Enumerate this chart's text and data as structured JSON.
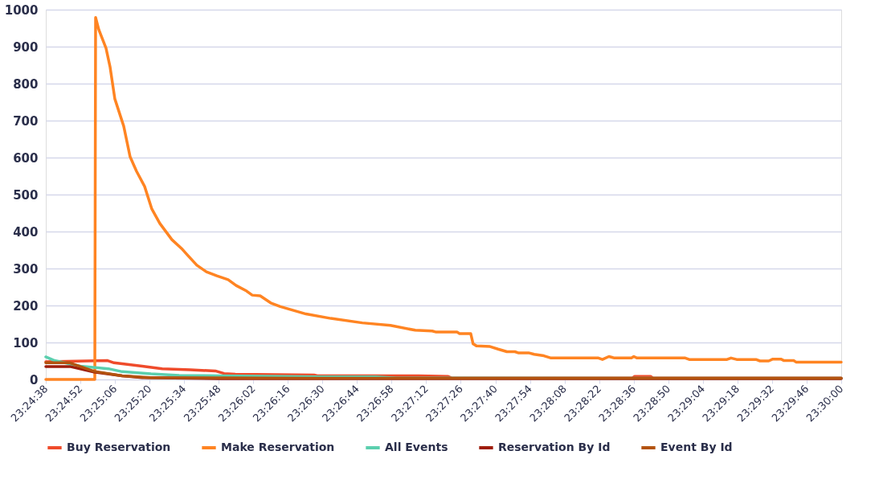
{
  "chart_data": {
    "type": "line",
    "xlim": [
      23.41056,
      23.5
    ],
    "ylim": [
      0,
      1000
    ],
    "yticks": [
      0,
      100,
      200,
      300,
      400,
      500,
      600,
      700,
      800,
      900,
      1000
    ],
    "xticks": [
      {
        "value": 23.41056,
        "label": "23:24:38"
      },
      {
        "value": 23.41444,
        "label": "23:24:52"
      },
      {
        "value": 23.41833,
        "label": "23:25:06"
      },
      {
        "value": 23.42222,
        "label": "23:25:20"
      },
      {
        "value": 23.42611,
        "label": "23:25:34"
      },
      {
        "value": 23.43,
        "label": "23:25:48"
      },
      {
        "value": 23.43389,
        "label": "23:26:02"
      },
      {
        "value": 23.43778,
        "label": "23:26:16"
      },
      {
        "value": 23.44167,
        "label": "23:26:30"
      },
      {
        "value": 23.44556,
        "label": "23:26:44"
      },
      {
        "value": 23.44944,
        "label": "23:26:58"
      },
      {
        "value": 23.45333,
        "label": "23:27:12"
      },
      {
        "value": 23.45722,
        "label": "23:27:26"
      },
      {
        "value": 23.46111,
        "label": "23:27:40"
      },
      {
        "value": 23.465,
        "label": "23:27:54"
      },
      {
        "value": 23.46889,
        "label": "23:28:08"
      },
      {
        "value": 23.47278,
        "label": "23:28:22"
      },
      {
        "value": 23.47667,
        "label": "23:28:36"
      },
      {
        "value": 23.48056,
        "label": "23:28:50"
      },
      {
        "value": 23.48444,
        "label": "23:29:04"
      },
      {
        "value": 23.48833,
        "label": "23:29:18"
      },
      {
        "value": 23.49222,
        "label": "23:29:32"
      },
      {
        "value": 23.49611,
        "label": "23:29:46"
      },
      {
        "value": 23.5,
        "label": "23:30:00"
      }
    ],
    "grid": "y",
    "legend": "bottom",
    "line_style": "solid",
    "marker": "none",
    "series": [
      {
        "name": "Buy Reservation",
        "color": "#ef4b2b",
        "x": [
          23.41056,
          23.41751,
          23.41823,
          23.4214,
          23.42365,
          23.42682,
          23.42962,
          23.43061,
          23.43187,
          23.44073,
          23.44109,
          23.45247,
          23.45581,
          23.45617,
          23.4765,
          23.47677,
          23.47857,
          23.47884,
          23.5
        ],
        "values": [
          48,
          51,
          45,
          36,
          29,
          26,
          23,
          16,
          14,
          12,
          10,
          10,
          8,
          4,
          4,
          8,
          8,
          4,
          4
        ]
      },
      {
        "name": "Make Reservation",
        "color": "#ff8422",
        "x": [
          23.41056,
          23.41607,
          23.41616,
          23.41652,
          23.41733,
          23.41778,
          23.41832,
          23.41932,
          23.42004,
          23.42076,
          23.42167,
          23.42248,
          23.42338,
          23.42474,
          23.42591,
          23.42654,
          23.42754,
          23.42862,
          23.4298,
          23.43106,
          23.43196,
          23.43314,
          23.43377,
          23.43467,
          23.43585,
          23.43693,
          23.43982,
          23.44262,
          23.44615,
          23.44931,
          23.45211,
          23.45401,
          23.45446,
          23.4568,
          23.45708,
          23.45834,
          23.45861,
          23.45897,
          23.46051,
          23.46141,
          23.46241,
          23.46331,
          23.46367,
          23.46484,
          23.46548,
          23.46656,
          23.46737,
          23.4727,
          23.47315,
          23.47388,
          23.47451,
          23.47641,
          23.47668,
          23.47704,
          23.48246,
          23.48291,
          23.48716,
          23.48761,
          23.48824,
          23.49041,
          23.49086,
          23.49185,
          23.49231,
          23.49321,
          23.49357,
          23.49465,
          23.49492,
          23.5
        ],
        "values": [
          0,
          0,
          979,
          946,
          896,
          846,
          759,
          685,
          602,
          563,
          522,
          461,
          422,
          378,
          352,
          335,
          309,
          291,
          280,
          270,
          254,
          239,
          228,
          226,
          207,
          197,
          177,
          165,
          153,
          146,
          133,
          131,
          128,
          128,
          124,
          124,
          96,
          91,
          89,
          82,
          75,
          75,
          72,
          72,
          68,
          64,
          58,
          58,
          54,
          62,
          58,
          58,
          62,
          58,
          58,
          54,
          54,
          58,
          54,
          54,
          50,
          50,
          55,
          55,
          51,
          51,
          47,
          47
        ]
      },
      {
        "name": "All Events",
        "color": "#5bcfae",
        "x": [
          23.41056,
          23.41155,
          23.41444,
          23.4176,
          23.41914,
          23.42239,
          23.42555,
          23.43025,
          23.44136,
          23.44768,
          23.45,
          23.5
        ],
        "values": [
          61,
          51,
          36,
          29,
          21,
          15,
          11,
          10,
          7,
          7,
          4,
          3
        ]
      },
      {
        "name": "Reservation By Id",
        "color": "#9e1d0b",
        "x": [
          23.41056,
          23.41327,
          23.41598,
          23.41914,
          23.4214,
          23.43,
          23.5
        ],
        "values": [
          35,
          35,
          20,
          10,
          5,
          2,
          2
        ]
      },
      {
        "name": "Event By Id",
        "color": "#b3530f",
        "x": [
          23.41056,
          23.41327,
          23.41598,
          23.41914,
          23.4223,
          23.44,
          23.5
        ],
        "values": [
          45,
          45,
          22,
          10,
          5,
          3,
          3
        ]
      }
    ]
  }
}
